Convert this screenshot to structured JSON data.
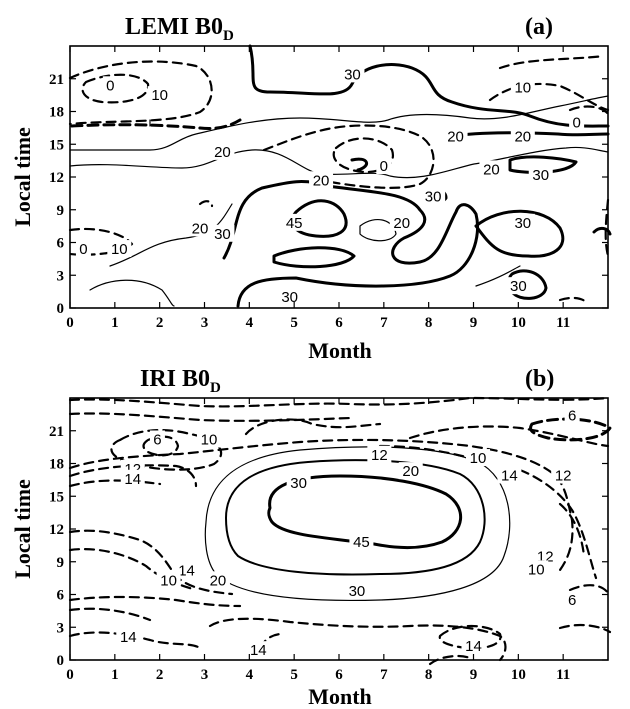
{
  "chart_data": [
    {
      "type": "contour",
      "panel_label": "(a)",
      "title_main": "LEMI  B0",
      "title_sub": "D",
      "xlabel": "Month",
      "ylabel": "Local time",
      "xlim": [
        0,
        12
      ],
      "ylim": [
        0,
        24
      ],
      "xticks": [
        "0",
        "1",
        "2",
        "3",
        "4",
        "5",
        "6",
        "7",
        "8",
        "9",
        "10",
        "11"
      ],
      "yticks": [
        "0",
        "3",
        "6",
        "9",
        "12",
        "15",
        "18",
        "21"
      ],
      "contour_labels": [
        {
          "text": "0",
          "x": 0.9,
          "y": 20.4
        },
        {
          "text": "10",
          "x": 2.0,
          "y": 19.5
        },
        {
          "text": "30",
          "x": 6.3,
          "y": 21.4
        },
        {
          "text": "10",
          "x": 10.1,
          "y": 20.2
        },
        {
          "text": "0",
          "x": 11.3,
          "y": 17.0
        },
        {
          "text": "20",
          "x": 8.6,
          "y": 15.7
        },
        {
          "text": "20",
          "x": 10.1,
          "y": 15.7
        },
        {
          "text": "20",
          "x": 3.4,
          "y": 14.3
        },
        {
          "text": "0",
          "x": 7.0,
          "y": 13.0
        },
        {
          "text": "20",
          "x": 9.4,
          "y": 12.7
        },
        {
          "text": "30",
          "x": 10.5,
          "y": 12.2
        },
        {
          "text": "20",
          "x": 5.6,
          "y": 11.7
        },
        {
          "text": "30",
          "x": 8.1,
          "y": 10.2
        },
        {
          "text": "20",
          "x": 2.9,
          "y": 7.3
        },
        {
          "text": "30",
          "x": 3.4,
          "y": 6.8
        },
        {
          "text": "45",
          "x": 5.0,
          "y": 7.8
        },
        {
          "text": "20",
          "x": 7.4,
          "y": 7.8
        },
        {
          "text": "30",
          "x": 10.1,
          "y": 7.8
        },
        {
          "text": "0",
          "x": 0.3,
          "y": 5.4
        },
        {
          "text": "10",
          "x": 1.1,
          "y": 5.4
        },
        {
          "text": "30",
          "x": 10.0,
          "y": 2.0
        },
        {
          "text": "30",
          "x": 4.9,
          "y": 1.0
        }
      ]
    },
    {
      "type": "contour",
      "panel_label": "(b)",
      "title_main": "IRI  B0",
      "title_sub": "D",
      "xlabel": "Month",
      "ylabel": "Local time",
      "xlim": [
        0,
        12
      ],
      "ylim": [
        0,
        24
      ],
      "xticks": [
        "0",
        "1",
        "2",
        "3",
        "4",
        "5",
        "6",
        "7",
        "8",
        "9",
        "10",
        "11"
      ],
      "yticks": [
        "0",
        "3",
        "6",
        "9",
        "12",
        "15",
        "18",
        "21"
      ],
      "contour_labels": [
        {
          "text": "6",
          "x": 1.95,
          "y": 20.2
        },
        {
          "text": "10",
          "x": 3.1,
          "y": 20.2
        },
        {
          "text": "12",
          "x": 6.9,
          "y": 18.8
        },
        {
          "text": "10",
          "x": 9.1,
          "y": 18.5
        },
        {
          "text": "6",
          "x": 11.2,
          "y": 22.4
        },
        {
          "text": "12",
          "x": 1.4,
          "y": 17.5
        },
        {
          "text": "14",
          "x": 1.4,
          "y": 16.6
        },
        {
          "text": "20",
          "x": 7.6,
          "y": 17.3
        },
        {
          "text": "14",
          "x": 9.8,
          "y": 16.9
        },
        {
          "text": "12",
          "x": 11.0,
          "y": 16.9
        },
        {
          "text": "30",
          "x": 5.1,
          "y": 16.2
        },
        {
          "text": "45",
          "x": 6.5,
          "y": 10.8
        },
        {
          "text": "30",
          "x": 6.4,
          "y": 6.3
        },
        {
          "text": "20",
          "x": 3.3,
          "y": 7.3
        },
        {
          "text": "14",
          "x": 2.6,
          "y": 8.2
        },
        {
          "text": "10",
          "x": 2.2,
          "y": 7.3
        },
        {
          "text": "12",
          "x": 10.6,
          "y": 9.5
        },
        {
          "text": "10",
          "x": 10.4,
          "y": 8.3
        },
        {
          "text": "6",
          "x": 11.2,
          "y": 5.5
        },
        {
          "text": "14",
          "x": 1.3,
          "y": 2.1
        },
        {
          "text": "14",
          "x": 4.2,
          "y": 0.9
        },
        {
          "text": "14",
          "x": 9.0,
          "y": 1.3
        }
      ]
    }
  ]
}
